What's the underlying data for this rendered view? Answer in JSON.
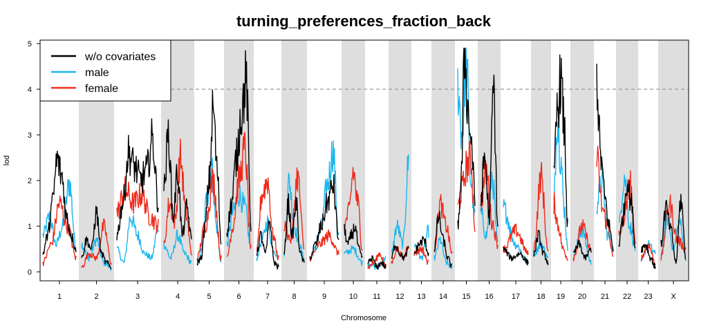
{
  "chart_data": {
    "type": "line",
    "title": "turning_preferences_fraction_back",
    "xlabel": "Chromosome",
    "ylabel": "lod",
    "ylim": [
      0,
      5
    ],
    "yticks": [
      "0",
      "1",
      "2",
      "3",
      "4",
      "5"
    ],
    "threshold": 4,
    "legend_position": "top-left",
    "grid": false,
    "chromosomes": [
      "1",
      "2",
      "3",
      "4",
      "5",
      "6",
      "7",
      "8",
      "9",
      "10",
      "11",
      "12",
      "13",
      "14",
      "15",
      "16",
      "17",
      "18",
      "19",
      "20",
      "21",
      "22",
      "23",
      "X"
    ],
    "series": [
      {
        "name": "w/o covariates",
        "color": "#000000",
        "peaks": [
          [
            0.4,
            0.8,
            1.5,
            2.45,
            2.1,
            1.2,
            0.8,
            0.5
          ],
          [
            0.3,
            0.7,
            0.5,
            1.3,
            0.4,
            0.2,
            0.1
          ],
          [
            0.8,
            1.5,
            2.6,
            2.3,
            2.0,
            2.2,
            2.9,
            1.5
          ],
          [
            1.8,
            3.0,
            1.2,
            2.2,
            0.8,
            1.4,
            0.7
          ],
          [
            0.2,
            0.3,
            1.0,
            2.0,
            3.6,
            2.2,
            0.6
          ],
          [
            0.9,
            1.5,
            2.5,
            3.5,
            4.2,
            1.0
          ],
          [
            0.4,
            0.8,
            0.4,
            1.1,
            0.2,
            0.1
          ],
          [
            0.4,
            1.5,
            0.8,
            1.5,
            0.4,
            0.2
          ],
          [
            0.3,
            0.6,
            1.0,
            1.5,
            1.9,
            0.7
          ],
          [
            0.9,
            0.6,
            0.8,
            1.0,
            0.5,
            0.3
          ],
          [
            0.2,
            0.3,
            0.1,
            0.2,
            0.1
          ],
          [
            0.3,
            0.6,
            0.4,
            0.3,
            0.5
          ],
          [
            0.4,
            0.6,
            0.7,
            0.4
          ],
          [
            0.5,
            1.2,
            0.7,
            0.3,
            0.1
          ],
          [
            1.0,
            2.0,
            4.9,
            3.5,
            2.8,
            1.5
          ],
          [
            1.5,
            2.5,
            1.2,
            4.0,
            1.0
          ],
          [
            0.5,
            0.3,
            0.4,
            0.2
          ],
          [
            0.4,
            0.8,
            0.4,
            0.2
          ],
          [
            2.0,
            3.5,
            4.2,
            3.2,
            1.0
          ],
          [
            0.4,
            0.6,
            0.3,
            0.5
          ],
          [
            4.15,
            2.5,
            1.6,
            1.0,
            0.5
          ],
          [
            0.6,
            1.2,
            2.0,
            1.5,
            0.5
          ],
          [
            0.5,
            0.6,
            0.3,
            0.1
          ],
          [
            0.6,
            1.4,
            0.9,
            0.2,
            1.6,
            0.3
          ]
        ]
      },
      {
        "name": "male",
        "color": "#1BB6EE",
        "peaks": [
          [
            0.8,
            1.2,
            0.6,
            1.0,
            1.95,
            0.5
          ],
          [
            0.6,
            0.3,
            0.7,
            0.2,
            0.1
          ],
          [
            0.5,
            0.2,
            1.2,
            0.8,
            0.4,
            0.3,
            1.0
          ],
          [
            0.6,
            0.3,
            0.8,
            0.4,
            0.2
          ],
          [
            0.2,
            0.5,
            1.6,
            2.3,
            1.0,
            0.2
          ],
          [
            0.6,
            1.3,
            1.7,
            1.4,
            0.5
          ],
          [
            0.3,
            0.7,
            1.1,
            0.5,
            0.3
          ],
          [
            0.4,
            2.0,
            1.0,
            0.6,
            0.3
          ],
          [
            0.3,
            0.5,
            1.0,
            1.9,
            2.65,
            0.8
          ],
          [
            0.4,
            0.5,
            0.2
          ],
          [
            0.2,
            0.1,
            0.3
          ],
          [
            0.4,
            1.0,
            0.6,
            2.4
          ],
          [
            0.6,
            0.3,
            0.9
          ],
          [
            0.3,
            0.7,
            0.2,
            0.1
          ],
          [
            4.1,
            3.0,
            4.7,
            2.0,
            1.2
          ],
          [
            1.3,
            0.8,
            2.1,
            0.6
          ],
          [
            1.4,
            0.6,
            0.2
          ],
          [
            0.4,
            0.6,
            0.3
          ],
          [
            1.5,
            3.4,
            2.5,
            1.4,
            0.5
          ],
          [
            0.4,
            0.9,
            0.2
          ],
          [
            1.5,
            2.0,
            0.8,
            0.5
          ],
          [
            1.0,
            2.1,
            1.0,
            0.5
          ],
          [
            0.2,
            0.6,
            0.4
          ],
          [
            0.4,
            1.2,
            0.5,
            1.1,
            0.3
          ]
        ]
      },
      {
        "name": "female",
        "color": "#EE2B1B",
        "peaks": [
          [
            0.2,
            0.6,
            1.5,
            1.0,
            0.3
          ],
          [
            0.1,
            0.4,
            0.3,
            1.0,
            0.2
          ],
          [
            1.3,
            1.8,
            1.5,
            1.7,
            1.2,
            1.0
          ],
          [
            0.6,
            1.5,
            1.1,
            2.5,
            1.3,
            0.4
          ],
          [
            0.3,
            1.0,
            2.0,
            0.3
          ],
          [
            0.3,
            1.0,
            2.0,
            2.7,
            0.5
          ],
          [
            0.4,
            1.7,
            2.0,
            0.8,
            0.3
          ],
          [
            1.0,
            0.7,
            2.1,
            0.5
          ],
          [
            0.3,
            0.6,
            0.8,
            0.4
          ],
          [
            1.0,
            1.3,
            2.2,
            1.5,
            0.5
          ],
          [
            0.1,
            0.2,
            0.4,
            0.1
          ],
          [
            0.2,
            0.5,
            0.3,
            0.6
          ],
          [
            0.4,
            0.5,
            0.2
          ],
          [
            0.5,
            1.5,
            1.0,
            0.4
          ],
          [
            1.4,
            1.8,
            2.3,
            2.5,
            1.0
          ],
          [
            1.5,
            2.2,
            1.1,
            0.6
          ],
          [
            0.5,
            0.9,
            0.4
          ],
          [
            0.5,
            2.1,
            0.4
          ],
          [
            1.5,
            1.0,
            0.5,
            0.3
          ],
          [
            0.3,
            1.0,
            0.5
          ],
          [
            2.5,
            1.4,
            1.0,
            0.3
          ],
          [
            0.8,
            1.2,
            2.0,
            0.6
          ],
          [
            0.3,
            0.6,
            0.2
          ],
          [
            0.3,
            1.5,
            0.7,
            0.5
          ]
        ]
      }
    ]
  }
}
